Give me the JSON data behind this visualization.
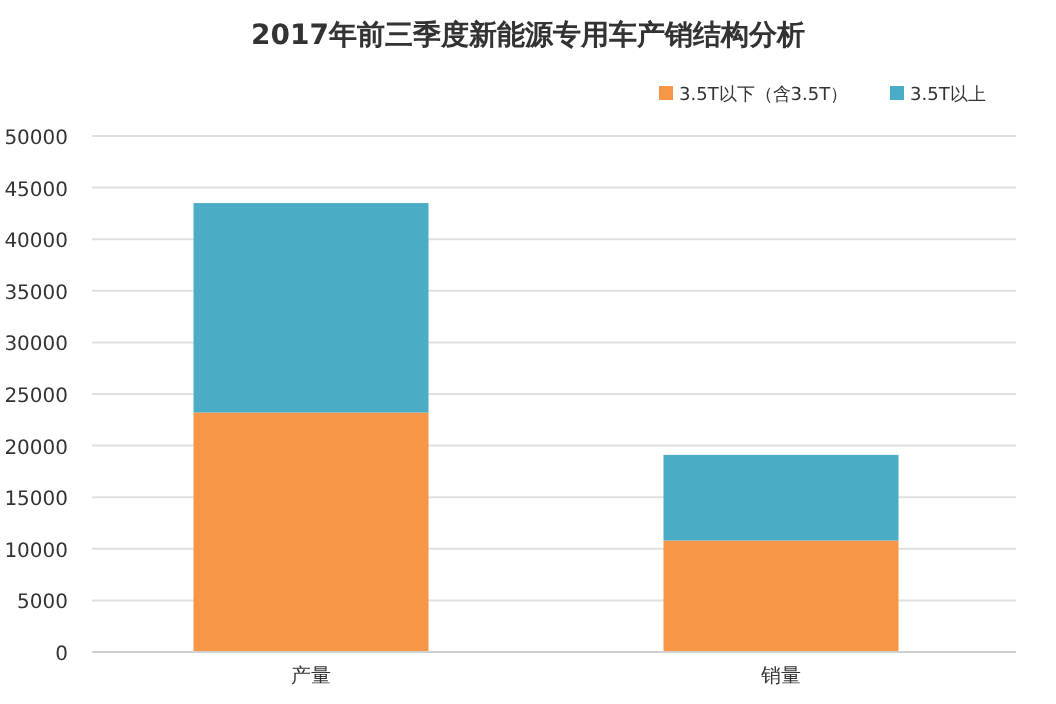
{
  "chart_data": {
    "type": "bar",
    "title": "2017年前三季度新能源专用车产销结构分析",
    "categories": [
      "产量",
      "销量"
    ],
    "stacked": true,
    "series": [
      {
        "name": "3.5T以下（含3.5T）",
        "color": "#f79646",
        "values": [
          23200,
          10800
        ]
      },
      {
        "name": "3.5T以上",
        "color": "#4bacc6",
        "values": [
          20300,
          8300
        ]
      }
    ],
    "ylim": [
      0,
      50000
    ],
    "yticks": [
      0,
      5000,
      10000,
      15000,
      20000,
      25000,
      30000,
      35000,
      40000,
      45000,
      50000
    ],
    "grid": "y",
    "legend": "top right"
  }
}
